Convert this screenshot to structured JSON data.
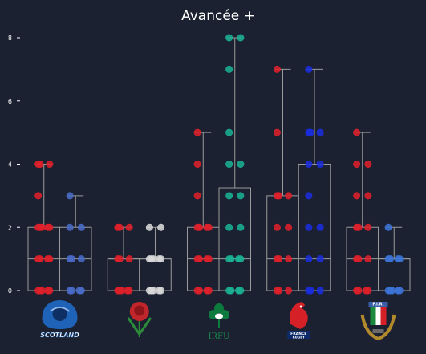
{
  "chart_data": {
    "type": "box",
    "title": "Avancée +",
    "xlabel": "",
    "ylabel": "",
    "ylim": [
      0,
      8
    ],
    "yticks": [
      0,
      2,
      4,
      6,
      8
    ],
    "grid": false,
    "groups": [
      {
        "logo": "scotland-rugby-logo",
        "logo_text": "SCOTLAND",
        "boxes": [
          {
            "color": "#e0202a",
            "min": 0,
            "q1": 0,
            "median": 1,
            "q3": 2,
            "max": 4,
            "points": [
              4,
              4,
              4,
              3,
              2,
              2,
              2,
              2,
              2,
              1,
              1,
              1,
              1,
              0,
              0,
              0,
              0,
              0
            ]
          },
          {
            "color": "#4a6cc9",
            "min": 0,
            "q1": 0,
            "median": 1,
            "q3": 2,
            "max": 3,
            "points": [
              3,
              2,
              2,
              1,
              1,
              1,
              0,
              0,
              0,
              0
            ]
          }
        ]
      },
      {
        "logo": "england-rose-logo",
        "logo_text": "",
        "boxes": [
          {
            "color": "#e0202a",
            "min": 0,
            "q1": 0,
            "median": 1,
            "q3": 1,
            "max": 2,
            "points": [
              2,
              2,
              2,
              1,
              1,
              1,
              0,
              0,
              0,
              0,
              0
            ]
          },
          {
            "color": "#d9d9d9",
            "min": 0,
            "q1": 0,
            "median": 1,
            "q3": 1,
            "max": 2,
            "points": [
              2,
              2,
              1,
              1,
              1,
              1,
              1,
              0,
              0,
              0,
              0,
              0
            ]
          }
        ]
      },
      {
        "logo": "irfu-shamrock-logo",
        "logo_text": "IRFU",
        "boxes": [
          {
            "color": "#e0202a",
            "min": 0,
            "q1": 0,
            "median": 1,
            "q3": 2,
            "max": 5,
            "points": [
              5,
              4,
              3,
              2,
              2,
              2,
              2,
              1,
              1,
              1,
              1,
              0,
              0,
              0,
              0
            ]
          },
          {
            "color": "#1ab394",
            "min": 0,
            "q1": 0,
            "median": 1,
            "q3": 3.25,
            "max": 8,
            "points": [
              8,
              8,
              7,
              5,
              4,
              4,
              3,
              3,
              2,
              2,
              1,
              1,
              1,
              1,
              0,
              0,
              0,
              0
            ]
          }
        ]
      },
      {
        "logo": "france-rugby-logo",
        "logo_text": "FRANCE RUGBY",
        "boxes": [
          {
            "color": "#e0202a",
            "min": 0,
            "q1": 0,
            "median": 1,
            "q3": 3,
            "max": 7,
            "points": [
              7,
              5,
              3,
              3,
              3,
              2,
              2,
              1,
              1,
              1,
              0,
              0,
              0
            ]
          },
          {
            "color": "#1a2de0",
            "min": 0,
            "q1": 0,
            "median": 1,
            "q3": 4,
            "max": 7,
            "points": [
              7,
              5,
              5,
              5,
              4,
              4,
              3,
              2,
              2,
              1,
              1,
              0,
              0,
              0
            ]
          }
        ]
      },
      {
        "logo": "italy-fir-logo",
        "logo_text": "F.I.R.",
        "boxes": [
          {
            "color": "#e0202a",
            "min": 0,
            "q1": 0,
            "median": 1,
            "q3": 2,
            "max": 5,
            "points": [
              5,
              4,
              4,
              3,
              3,
              2,
              2,
              2,
              1,
              1,
              1,
              0,
              0,
              0,
              0
            ]
          },
          {
            "color": "#3c74d8",
            "min": 0,
            "q1": 0,
            "median": 1,
            "q3": 1,
            "max": 2,
            "points": [
              2,
              1,
              1,
              1,
              1,
              0,
              0,
              0,
              0,
              0
            ]
          }
        ]
      }
    ]
  }
}
